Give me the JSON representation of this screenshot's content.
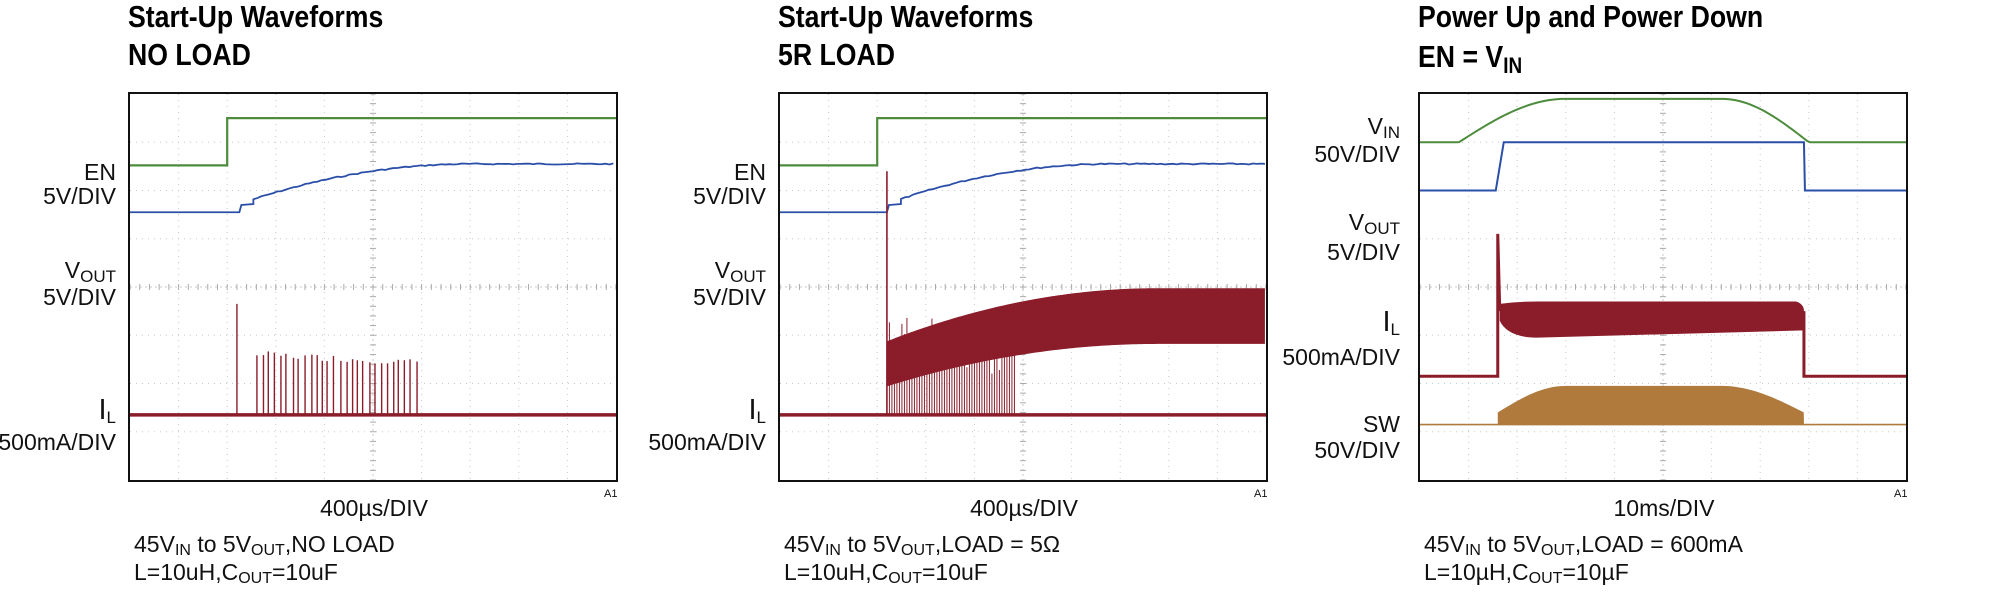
{
  "chart_data": [
    {
      "type": "line",
      "title": [
        "Start-Up Waveforms",
        "NO LOAD"
      ],
      "traces": [
        {
          "name": "EN",
          "scale": "5V/DIV",
          "color": "#4c8c3c"
        },
        {
          "name": "V",
          "sub": "OUT",
          "scale": "5V/DIV",
          "color": "#2b4fa8"
        },
        {
          "name": "I",
          "sub": "L",
          "scale": "500mA/DIV",
          "color": "#8b1c2a"
        }
      ],
      "timebase": "400µs/DIV",
      "channel": "A1",
      "x_divisions": 10,
      "y_divisions": 8,
      "x_unit": "µs",
      "en_step_time": 800,
      "vout_rise": {
        "start": 900,
        "settle": 2800,
        "final_div": 1.0
      },
      "il_pulses": {
        "start": 880,
        "end": 2400,
        "peak_div": 2.3
      },
      "caption": [
        [
          {
            "t": "45V"
          },
          {
            "t": "IN",
            "sub": true
          },
          {
            "t": " to 5V"
          },
          {
            "t": "OUT",
            "sub": true
          },
          {
            "t": ",NO LOAD"
          }
        ],
        [
          {
            "t": "L=10uH,C"
          },
          {
            "t": "OUT",
            "sub": true
          },
          {
            "t": "=10uF"
          }
        ]
      ]
    },
    {
      "type": "line",
      "title": [
        "Start-Up Waveforms",
        "5R LOAD"
      ],
      "traces": [
        {
          "name": "EN",
          "scale": "5V/DIV",
          "color": "#4c8c3c"
        },
        {
          "name": "V",
          "sub": "OUT",
          "scale": "5V/DIV",
          "color": "#2b4fa8"
        },
        {
          "name": "I",
          "sub": "L",
          "scale": "500mA/DIV",
          "color": "#8b1c2a"
        }
      ],
      "timebase": "400µs/DIV",
      "channel": "A1",
      "x_divisions": 10,
      "y_divisions": 8,
      "x_unit": "µs",
      "en_step_time": 800,
      "vout_rise": {
        "start": 880,
        "settle": 2700,
        "final_div": 1.0
      },
      "il_current": {
        "start": 880,
        "level_div": 1.3,
        "final_div": 2.4,
        "ripple_div": 0.9
      },
      "caption": [
        [
          {
            "t": "45V"
          },
          {
            "t": "IN",
            "sub": true
          },
          {
            "t": " to 5V"
          },
          {
            "t": "OUT",
            "sub": true
          },
          {
            "t": ",LOAD = 5Ω"
          }
        ],
        [
          {
            "t": "L=10uH,C"
          },
          {
            "t": "OUT",
            "sub": true
          },
          {
            "t": "=10uF"
          }
        ]
      ]
    },
    {
      "type": "line",
      "title": [
        "Power Up and Power Down",
        "EN = V",
        "IN"
      ],
      "traces": [
        {
          "name": "V",
          "sub": "IN",
          "scale": "50V/DIV",
          "color": "#4c8c3c"
        },
        {
          "name": "V",
          "sub": "OUT",
          "scale": "5V/DIV",
          "color": "#2b4fa8"
        },
        {
          "name": "I",
          "sub": "L",
          "scale": "500mA/DIV",
          "color": "#8b1c2a"
        },
        {
          "name": "SW",
          "scale": "50V/DIV",
          "color": "#b07a3c"
        }
      ],
      "timebase": "10ms/DIV",
      "channel": "A1",
      "x_divisions": 10,
      "y_divisions": 8,
      "x_unit": "ms",
      "vin_profile": {
        "rise_start": 8,
        "plateau": [
          30,
          62
        ],
        "fall_end": 80,
        "amplitude_div": 0.9
      },
      "vout_window": [
        16,
        79
      ],
      "il_window": [
        16,
        79
      ],
      "sw_window": [
        16,
        79
      ],
      "caption": [
        [
          {
            "t": "45V"
          },
          {
            "t": "IN",
            "sub": true
          },
          {
            "t": " to 5V"
          },
          {
            "t": "OUT",
            "sub": true
          },
          {
            "t": ",LOAD = 600mA"
          }
        ],
        [
          {
            "t": "L=10µH,C"
          },
          {
            "t": "OUT",
            "sub": true
          },
          {
            "t": "=10µF"
          }
        ]
      ]
    }
  ]
}
